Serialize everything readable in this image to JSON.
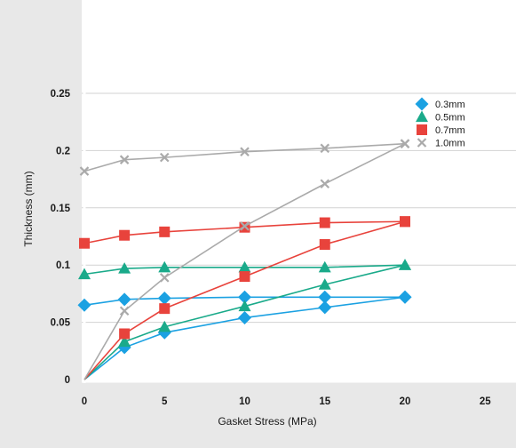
{
  "chart_data": {
    "type": "line",
    "title": "",
    "xlabel": "Gasket Stress (MPa)",
    "ylabel": "Thickness (mm)",
    "xlim": [
      0,
      27
    ],
    "ylim": [
      0,
      0.255
    ],
    "xticks": [
      0,
      5,
      10,
      15,
      20,
      25
    ],
    "xtick_labels": [
      "0",
      "5",
      "10",
      "15",
      "20",
      "25"
    ],
    "yticks": [
      0,
      0.05,
      0.1,
      0.15,
      0.2,
      0.25
    ],
    "ytick_labels": [
      "0",
      "0.05",
      "0.1",
      "0.15",
      "0.2",
      "0.25"
    ],
    "grid": "horizontal",
    "legend_position": "right",
    "series": [
      {
        "name": "0.3mm",
        "marker": "diamond",
        "color": "#1ba1e2",
        "loading": [
          [
            0,
            0
          ],
          [
            2.5,
            0.028
          ],
          [
            5,
            0.041
          ],
          [
            10,
            0.054
          ],
          [
            15,
            0.063
          ],
          [
            20,
            0.072
          ]
        ],
        "unloading": [
          [
            20,
            0.072
          ],
          [
            15,
            0.072
          ],
          [
            10,
            0.072
          ],
          [
            5,
            0.071
          ],
          [
            2.5,
            0.07
          ],
          [
            0,
            0.065
          ]
        ]
      },
      {
        "name": "0.5mm",
        "marker": "triangle",
        "color": "#1aaa8a",
        "loading": [
          [
            0,
            0
          ],
          [
            2.5,
            0.033
          ],
          [
            5,
            0.046
          ],
          [
            10,
            0.064
          ],
          [
            15,
            0.083
          ],
          [
            20,
            0.1
          ]
        ],
        "unloading": [
          [
            20,
            0.1
          ],
          [
            15,
            0.098
          ],
          [
            10,
            0.098
          ],
          [
            5,
            0.098
          ],
          [
            2.5,
            0.097
          ],
          [
            0,
            0.092
          ]
        ]
      },
      {
        "name": "0.7mm",
        "marker": "square",
        "color": "#e8433c",
        "loading": [
          [
            0,
            0
          ],
          [
            2.5,
            0.04
          ],
          [
            5,
            0.062
          ],
          [
            10,
            0.09
          ],
          [
            15,
            0.118
          ],
          [
            20,
            0.138
          ]
        ],
        "unloading": [
          [
            20,
            0.138
          ],
          [
            15,
            0.137
          ],
          [
            10,
            0.133
          ],
          [
            5,
            0.129
          ],
          [
            2.5,
            0.126
          ],
          [
            0,
            0.119
          ]
        ]
      },
      {
        "name": "1.0mm",
        "marker": "x",
        "color": "#aaaaaa",
        "loading": [
          [
            0,
            0
          ],
          [
            2.5,
            0.06
          ],
          [
            5,
            0.089
          ],
          [
            10,
            0.134
          ],
          [
            15,
            0.171
          ],
          [
            20,
            0.206
          ]
        ],
        "unloading": [
          [
            20,
            0.206
          ],
          [
            15,
            0.202
          ],
          [
            10,
            0.199
          ],
          [
            5,
            0.194
          ],
          [
            2.5,
            0.192
          ],
          [
            0,
            0.182
          ]
        ]
      }
    ]
  }
}
